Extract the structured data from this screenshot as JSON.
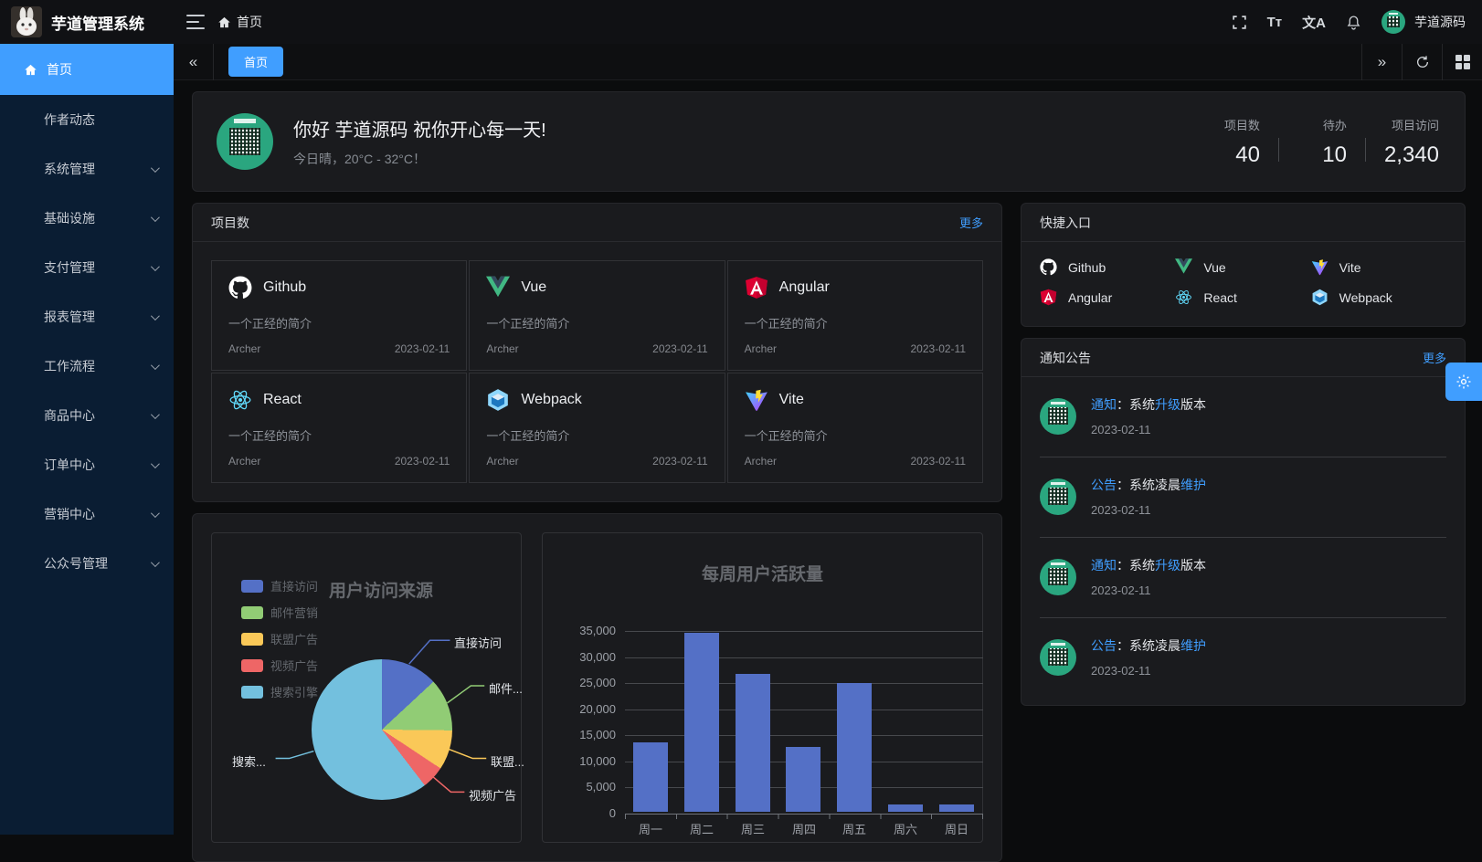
{
  "app": {
    "title": "芋道管理系统",
    "username": "芋道源码"
  },
  "header": {
    "breadcrumb_home": "首页",
    "font_size_icon_text": "Tт",
    "locale_icon_text": "文A"
  },
  "sidebar": {
    "items": [
      {
        "label": "首页",
        "active": true,
        "expandable": false
      },
      {
        "label": "作者动态",
        "active": false,
        "expandable": false
      },
      {
        "label": "系统管理",
        "active": false,
        "expandable": true
      },
      {
        "label": "基础设施",
        "active": false,
        "expandable": true
      },
      {
        "label": "支付管理",
        "active": false,
        "expandable": true
      },
      {
        "label": "报表管理",
        "active": false,
        "expandable": true
      },
      {
        "label": "工作流程",
        "active": false,
        "expandable": true
      },
      {
        "label": "商品中心",
        "active": false,
        "expandable": true
      },
      {
        "label": "订单中心",
        "active": false,
        "expandable": true
      },
      {
        "label": "营销中心",
        "active": false,
        "expandable": true
      },
      {
        "label": "公众号管理",
        "active": false,
        "expandable": true
      }
    ]
  },
  "tabs": {
    "items": [
      {
        "label": "首页",
        "active": true
      }
    ]
  },
  "greeting": {
    "title": "你好 芋道源码 祝你开心每一天!",
    "subtitle": "今日晴，20°C - 32°C！",
    "stats": [
      {
        "label": "项目数",
        "value": "40"
      },
      {
        "label": "待办",
        "value": "10"
      },
      {
        "label": "项目访问",
        "value": "2,340"
      }
    ]
  },
  "projects": {
    "title": "项目数",
    "more": "更多",
    "items": [
      {
        "name": "Github",
        "desc": "一个正经的简介",
        "author": "Archer",
        "date": "2023-02-11"
      },
      {
        "name": "Vue",
        "desc": "一个正经的简介",
        "author": "Archer",
        "date": "2023-02-11"
      },
      {
        "name": "Angular",
        "desc": "一个正经的简介",
        "author": "Archer",
        "date": "2023-02-11"
      },
      {
        "name": "React",
        "desc": "一个正经的简介",
        "author": "Archer",
        "date": "2023-02-11"
      },
      {
        "name": "Webpack",
        "desc": "一个正经的简介",
        "author": "Archer",
        "date": "2023-02-11"
      },
      {
        "name": "Vite",
        "desc": "一个正经的简介",
        "author": "Archer",
        "date": "2023-02-11"
      }
    ]
  },
  "quick": {
    "title": "快捷入口",
    "items": [
      {
        "label": "Github"
      },
      {
        "label": "Vue"
      },
      {
        "label": "Vite"
      },
      {
        "label": "Angular"
      },
      {
        "label": "React"
      },
      {
        "label": "Webpack"
      }
    ]
  },
  "notices": {
    "title": "通知公告",
    "more": "更多",
    "items": [
      {
        "parts": [
          {
            "text": "通知"
          },
          {
            "text": "：系统"
          },
          {
            "text": "升级"
          },
          {
            "text": "版本"
          }
        ],
        "date": "2023-02-11"
      },
      {
        "parts": [
          {
            "text": "公告"
          },
          {
            "text": "：系统凌晨"
          },
          {
            "text": "维护"
          }
        ],
        "date": "2023-02-11"
      },
      {
        "parts": [
          {
            "text": "通知"
          },
          {
            "text": "：系统"
          },
          {
            "text": "升级"
          },
          {
            "text": "版本"
          }
        ],
        "date": "2023-02-11"
      },
      {
        "parts": [
          {
            "text": "公告"
          },
          {
            "text": "：系统凌晨"
          },
          {
            "text": "维护"
          }
        ],
        "date": "2023-02-11"
      }
    ]
  },
  "chart_data": [
    {
      "type": "pie",
      "title": "用户访问来源",
      "series": [
        {
          "name": "直接访问",
          "value": 335
        },
        {
          "name": "邮件营销",
          "value": 310
        },
        {
          "name": "联盟广告",
          "value": 234
        },
        {
          "name": "视频广告",
          "value": 135
        },
        {
          "name": "搜索引擎",
          "value": 1548
        }
      ],
      "legend": [
        "直接访问",
        "邮件营销",
        "联盟广告",
        "视频广告",
        "搜索引擎"
      ],
      "callout_labels": [
        "直接访问",
        "邮件...",
        "联盟...",
        "视频广告",
        "搜索..."
      ],
      "colors": [
        "#5470c6",
        "#91cc75",
        "#fac858",
        "#ee6666",
        "#73c0de"
      ],
      "legend_position": "left"
    },
    {
      "type": "bar",
      "title": "每周用户活跃量",
      "categories": [
        "周一",
        "周二",
        "周三",
        "周四",
        "周五",
        "周六",
        "周日"
      ],
      "values": [
        13300,
        34300,
        26400,
        12400,
        24700,
        1400,
        1400
      ],
      "yticks": [
        "0",
        "5,000",
        "10,000",
        "15,000",
        "20,000",
        "25,000",
        "30,000",
        "35,000"
      ],
      "ylim": [
        0,
        35000
      ],
      "bar_color": "#5470c6",
      "grid": true
    }
  ]
}
